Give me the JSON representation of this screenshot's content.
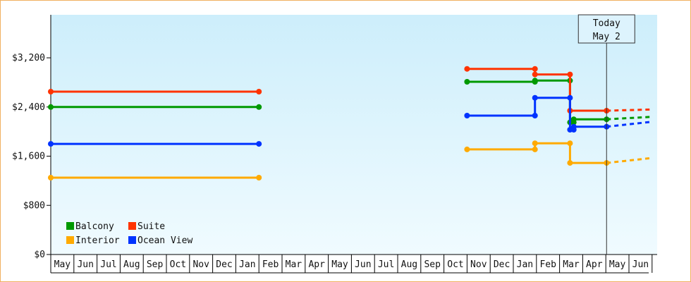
{
  "chart_data": {
    "type": "line",
    "title": "",
    "xlabel": "",
    "ylabel": "",
    "x_axis": {
      "start_month": "2022-05",
      "month_labels": [
        "May",
        "Jun",
        "Jul",
        "Aug",
        "Sep",
        "Oct",
        "Nov",
        "Dec",
        "Jan",
        "Feb",
        "Mar",
        "Apr",
        "May",
        "Jun",
        "Jul",
        "Aug",
        "Sep",
        "Oct",
        "Nov",
        "Dec",
        "Jan",
        "Feb",
        "Mar",
        "Apr",
        "May",
        "Jun"
      ]
    },
    "y_axis": {
      "range": [
        0,
        3900
      ],
      "ticks": [
        0,
        800,
        1600,
        2400,
        3200
      ],
      "tick_labels": [
        "$0",
        "$800",
        "$1,600",
        "$2,400",
        "$3,200"
      ]
    },
    "today": {
      "line1": "Today",
      "line2": "May 2",
      "date": "2024-05-02"
    },
    "legend": {
      "position": "bottom-left"
    },
    "background": {
      "top_color": "#cdeefb",
      "bottom_color": "#f0fbff"
    },
    "series": [
      {
        "name": "Balcony",
        "color": "#009900",
        "segments": [
          [
            [
              "2022-05-01",
              2400
            ],
            [
              "2023-02-01",
              2400
            ]
          ],
          [
            [
              "2023-11-01",
              2810
            ],
            [
              "2024-01-30",
              2810
            ],
            [
              "2024-01-30",
              2830
            ],
            [
              "2024-03-15",
              2830
            ],
            [
              "2024-03-15",
              2150
            ],
            [
              "2024-03-20",
              2150
            ],
            [
              "2024-03-20",
              2200
            ],
            [
              "2024-05-02",
              2200
            ]
          ]
        ],
        "projection": [
          [
            "2024-05-02",
            2200
          ],
          [
            "2024-07-01",
            2240
          ]
        ]
      },
      {
        "name": "Suite",
        "color": "#ff3300",
        "segments": [
          [
            [
              "2022-05-01",
              2650
            ],
            [
              "2023-02-01",
              2650
            ]
          ],
          [
            [
              "2023-11-01",
              3020
            ],
            [
              "2024-01-30",
              3020
            ],
            [
              "2024-01-30",
              2930
            ],
            [
              "2024-03-15",
              2930
            ],
            [
              "2024-03-15",
              2340
            ],
            [
              "2024-05-02",
              2340
            ]
          ]
        ],
        "projection": [
          [
            "2024-05-02",
            2340
          ],
          [
            "2024-07-01",
            2360
          ]
        ]
      },
      {
        "name": "Interior",
        "color": "#ffaa00",
        "segments": [
          [
            [
              "2022-05-01",
              1250
            ],
            [
              "2023-02-01",
              1250
            ]
          ],
          [
            [
              "2023-11-01",
              1710
            ],
            [
              "2024-01-30",
              1710
            ],
            [
              "2024-01-30",
              1810
            ],
            [
              "2024-03-15",
              1810
            ],
            [
              "2024-03-15",
              1490
            ],
            [
              "2024-05-02",
              1490
            ]
          ]
        ],
        "projection": [
          [
            "2024-05-02",
            1490
          ],
          [
            "2024-07-01",
            1570
          ]
        ]
      },
      {
        "name": "Ocean View",
        "color": "#0033ff",
        "segments": [
          [
            [
              "2022-05-01",
              1800
            ],
            [
              "2023-02-01",
              1800
            ]
          ],
          [
            [
              "2023-11-01",
              2260
            ],
            [
              "2024-01-30",
              2260
            ],
            [
              "2024-01-30",
              2550
            ],
            [
              "2024-03-15",
              2550
            ],
            [
              "2024-03-15",
              2030
            ],
            [
              "2024-03-20",
              2030
            ],
            [
              "2024-03-20",
              2080
            ],
            [
              "2024-05-02",
              2080
            ]
          ]
        ],
        "projection": [
          [
            "2024-05-02",
            2080
          ],
          [
            "2024-07-01",
            2160
          ]
        ]
      }
    ]
  }
}
